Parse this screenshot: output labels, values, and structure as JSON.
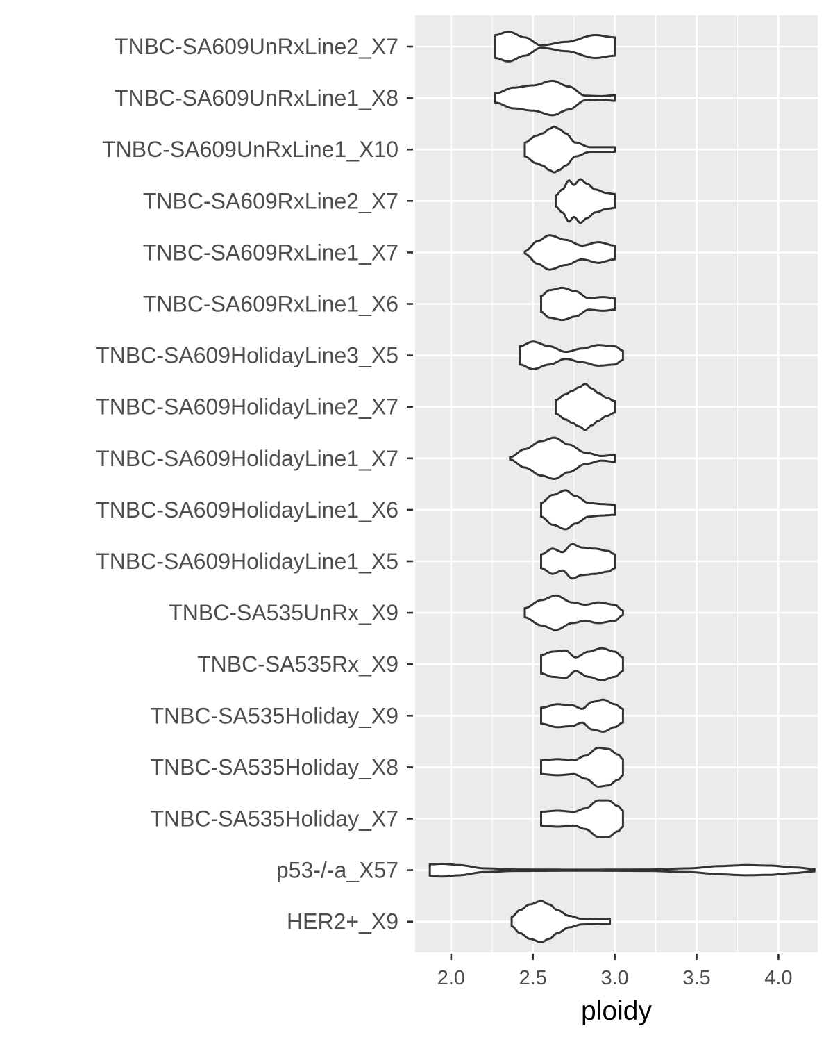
{
  "chart_data": {
    "type": "violin",
    "orientation": "horizontal",
    "xlabel": "ploidy",
    "ylabel": "",
    "xlim": [
      1.78,
      4.24
    ],
    "x_ticks": [
      2.0,
      2.5,
      3.0,
      3.5,
      4.0
    ],
    "x_tick_labels": [
      "2.0",
      "2.5",
      "3.0",
      "3.5",
      "4.0"
    ],
    "grid": true,
    "background": "#ebebeb",
    "outline_color": "#333333",
    "categories": [
      "TNBC-SA609UnRxLine2_X7",
      "TNBC-SA609UnRxLine1_X8",
      "TNBC-SA609UnRxLine1_X10",
      "TNBC-SA609RxLine2_X7",
      "TNBC-SA609RxLine1_X7",
      "TNBC-SA609RxLine1_X6",
      "TNBC-SA609HolidayLine3_X5",
      "TNBC-SA609HolidayLine2_X7",
      "TNBC-SA609HolidayLine1_X7",
      "TNBC-SA609HolidayLine1_X6",
      "TNBC-SA609HolidayLine1_X5",
      "TNBC-SA535UnRx_X9",
      "TNBC-SA535Rx_X9",
      "TNBC-SA535Holiday_X9",
      "TNBC-SA535Holiday_X8",
      "TNBC-SA535Holiday_X7",
      "p53-/-a_X57",
      "HER2+_X9"
    ],
    "violins": [
      {
        "range": [
          2.27,
          3.0
        ],
        "profile": [
          [
            2.27,
            0.5
          ],
          [
            2.35,
            0.65
          ],
          [
            2.45,
            0.4
          ],
          [
            2.55,
            0.05
          ],
          [
            2.7,
            0.2
          ],
          [
            2.88,
            0.5
          ],
          [
            3.0,
            0.4
          ]
        ]
      },
      {
        "range": [
          2.27,
          3.0
        ],
        "profile": [
          [
            2.27,
            0.2
          ],
          [
            2.38,
            0.45
          ],
          [
            2.5,
            0.55
          ],
          [
            2.62,
            0.75
          ],
          [
            2.72,
            0.5
          ],
          [
            2.82,
            0.1
          ],
          [
            2.92,
            0.08
          ],
          [
            3.0,
            0.12
          ]
        ]
      },
      {
        "range": [
          2.45,
          3.0
        ],
        "profile": [
          [
            2.45,
            0.3
          ],
          [
            2.52,
            0.6
          ],
          [
            2.56,
            0.7
          ],
          [
            2.6,
            0.9
          ],
          [
            2.63,
            1.0
          ],
          [
            2.66,
            0.9
          ],
          [
            2.7,
            0.7
          ],
          [
            2.76,
            0.3
          ],
          [
            2.85,
            0.1
          ],
          [
            3.0,
            0.1
          ]
        ]
      },
      {
        "range": [
          2.64,
          3.0
        ],
        "profile": [
          [
            2.64,
            0.25
          ],
          [
            2.68,
            0.5
          ],
          [
            2.72,
            0.9
          ],
          [
            2.75,
            0.7
          ],
          [
            2.79,
            0.95
          ],
          [
            2.83,
            0.75
          ],
          [
            2.88,
            0.5
          ],
          [
            2.95,
            0.35
          ],
          [
            3.0,
            0.3
          ]
        ]
      },
      {
        "range": [
          2.45,
          3.0
        ],
        "profile": [
          [
            2.45,
            0.05
          ],
          [
            2.53,
            0.5
          ],
          [
            2.6,
            0.75
          ],
          [
            2.7,
            0.55
          ],
          [
            2.8,
            0.3
          ],
          [
            2.9,
            0.45
          ],
          [
            3.0,
            0.3
          ]
        ]
      },
      {
        "range": [
          2.55,
          3.0
        ],
        "profile": [
          [
            2.55,
            0.35
          ],
          [
            2.6,
            0.6
          ],
          [
            2.68,
            0.7
          ],
          [
            2.76,
            0.55
          ],
          [
            2.84,
            0.25
          ],
          [
            2.93,
            0.3
          ],
          [
            3.0,
            0.25
          ]
        ]
      },
      {
        "range": [
          2.42,
          3.05
        ],
        "profile": [
          [
            2.42,
            0.4
          ],
          [
            2.5,
            0.6
          ],
          [
            2.6,
            0.4
          ],
          [
            2.7,
            0.15
          ],
          [
            2.8,
            0.3
          ],
          [
            2.9,
            0.45
          ],
          [
            3.0,
            0.4
          ],
          [
            3.05,
            0.2
          ]
        ]
      },
      {
        "range": [
          2.64,
          3.0
        ],
        "profile": [
          [
            2.64,
            0.3
          ],
          [
            2.7,
            0.55
          ],
          [
            2.74,
            0.7
          ],
          [
            2.78,
            0.85
          ],
          [
            2.82,
            1.0
          ],
          [
            2.86,
            0.8
          ],
          [
            2.9,
            0.6
          ],
          [
            2.95,
            0.4
          ],
          [
            3.0,
            0.25
          ]
        ]
      },
      {
        "range": [
          2.36,
          3.0
        ],
        "profile": [
          [
            2.36,
            0.05
          ],
          [
            2.45,
            0.4
          ],
          [
            2.55,
            0.75
          ],
          [
            2.63,
            0.9
          ],
          [
            2.72,
            0.6
          ],
          [
            2.82,
            0.25
          ],
          [
            2.92,
            0.1
          ],
          [
            3.0,
            0.15
          ]
        ]
      },
      {
        "range": [
          2.55,
          3.0
        ],
        "profile": [
          [
            2.55,
            0.3
          ],
          [
            2.62,
            0.65
          ],
          [
            2.7,
            0.85
          ],
          [
            2.76,
            0.6
          ],
          [
            2.84,
            0.3
          ],
          [
            2.92,
            0.25
          ],
          [
            3.0,
            0.22
          ]
        ]
      },
      {
        "range": [
          2.55,
          3.0
        ],
        "profile": [
          [
            2.55,
            0.3
          ],
          [
            2.62,
            0.55
          ],
          [
            2.68,
            0.4
          ],
          [
            2.74,
            0.75
          ],
          [
            2.8,
            0.6
          ],
          [
            2.88,
            0.55
          ],
          [
            2.96,
            0.45
          ],
          [
            3.0,
            0.3
          ]
        ]
      },
      {
        "range": [
          2.45,
          3.05
        ],
        "profile": [
          [
            2.45,
            0.2
          ],
          [
            2.55,
            0.55
          ],
          [
            2.64,
            0.75
          ],
          [
            2.74,
            0.45
          ],
          [
            2.82,
            0.35
          ],
          [
            2.9,
            0.45
          ],
          [
            3.0,
            0.35
          ],
          [
            3.05,
            0.1
          ]
        ]
      },
      {
        "range": [
          2.55,
          3.05
        ],
        "profile": [
          [
            2.55,
            0.4
          ],
          [
            2.62,
            0.55
          ],
          [
            2.7,
            0.6
          ],
          [
            2.76,
            0.3
          ],
          [
            2.84,
            0.55
          ],
          [
            2.92,
            0.7
          ],
          [
            3.0,
            0.55
          ],
          [
            3.05,
            0.3
          ]
        ]
      },
      {
        "range": [
          2.55,
          3.05
        ],
        "profile": [
          [
            2.55,
            0.35
          ],
          [
            2.65,
            0.5
          ],
          [
            2.74,
            0.45
          ],
          [
            2.8,
            0.3
          ],
          [
            2.86,
            0.6
          ],
          [
            2.93,
            0.7
          ],
          [
            3.0,
            0.5
          ],
          [
            3.05,
            0.3
          ]
        ]
      },
      {
        "range": [
          2.55,
          3.05
        ],
        "profile": [
          [
            2.55,
            0.3
          ],
          [
            2.65,
            0.35
          ],
          [
            2.75,
            0.3
          ],
          [
            2.82,
            0.5
          ],
          [
            2.9,
            0.85
          ],
          [
            2.96,
            0.8
          ],
          [
            3.02,
            0.55
          ],
          [
            3.05,
            0.35
          ]
        ]
      },
      {
        "range": [
          2.55,
          3.05
        ],
        "profile": [
          [
            2.55,
            0.3
          ],
          [
            2.65,
            0.35
          ],
          [
            2.75,
            0.3
          ],
          [
            2.82,
            0.45
          ],
          [
            2.9,
            0.8
          ],
          [
            2.96,
            0.8
          ],
          [
            3.02,
            0.55
          ],
          [
            3.05,
            0.35
          ]
        ]
      },
      {
        "range": [
          1.87,
          4.22
        ],
        "profile": [
          [
            1.87,
            0.25
          ],
          [
            1.95,
            0.28
          ],
          [
            2.05,
            0.22
          ],
          [
            2.2,
            0.08
          ],
          [
            2.4,
            0.03
          ],
          [
            2.8,
            0.02
          ],
          [
            3.2,
            0.03
          ],
          [
            3.45,
            0.08
          ],
          [
            3.65,
            0.18
          ],
          [
            3.8,
            0.22
          ],
          [
            3.95,
            0.2
          ],
          [
            4.1,
            0.12
          ],
          [
            4.22,
            0.05
          ]
        ]
      },
      {
        "range": [
          2.37,
          2.97
        ],
        "profile": [
          [
            2.37,
            0.2
          ],
          [
            2.42,
            0.5
          ],
          [
            2.48,
            0.75
          ],
          [
            2.55,
            0.9
          ],
          [
            2.6,
            0.75
          ],
          [
            2.65,
            0.5
          ],
          [
            2.72,
            0.25
          ],
          [
            2.8,
            0.12
          ],
          [
            2.9,
            0.1
          ],
          [
            2.97,
            0.1
          ]
        ]
      }
    ]
  }
}
